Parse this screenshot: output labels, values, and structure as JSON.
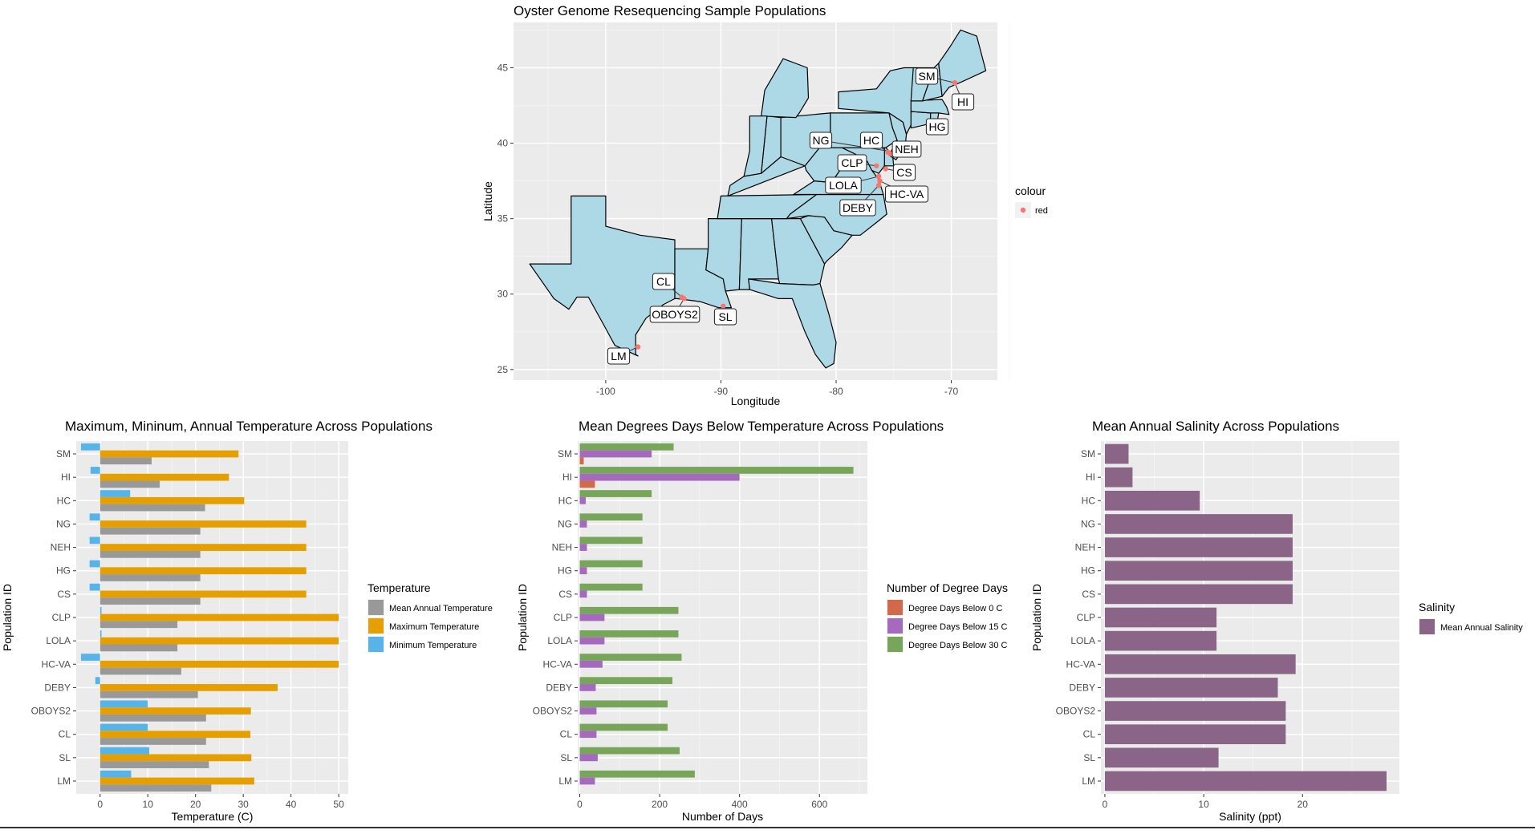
{
  "chart_data": [
    {
      "type": "map",
      "title": "Oyster Genome Resequencing Sample Populations",
      "xlabel": "Longitude",
      "ylabel": "Latitude",
      "xlim": [
        -108,
        -66
      ],
      "ylim": [
        24.3,
        48
      ],
      "x_ticks": [
        -100,
        -90,
        -80,
        -70
      ],
      "y_ticks": [
        25,
        30,
        35,
        40,
        45
      ],
      "grid": true,
      "fill_color": "#add8e6",
      "point_color": "#f8766d",
      "legend": {
        "title": "colour",
        "entries": [
          "red"
        ],
        "position": "right"
      },
      "points": [
        {
          "label": "SM",
          "lon": -69.7,
          "lat": 44.0
        },
        {
          "label": "HI",
          "lon": -69.7,
          "lat": 44.0
        },
        {
          "label": "HG",
          "lon": -71.5,
          "lat": 41.5
        },
        {
          "label": "NG",
          "lon": -74.8,
          "lat": 39.4
        },
        {
          "label": "HC",
          "lon": -75.5,
          "lat": 39.4
        },
        {
          "label": "NEH",
          "lon": -75.3,
          "lat": 39.3
        },
        {
          "label": "CLP",
          "lon": -76.5,
          "lat": 38.5
        },
        {
          "label": "CS",
          "lon": -75.7,
          "lat": 38.3
        },
        {
          "label": "LOLA",
          "lon": -76.3,
          "lat": 37.8
        },
        {
          "label": "HC-VA",
          "lon": -76.2,
          "lat": 37.5
        },
        {
          "label": "DEBY",
          "lon": -76.3,
          "lat": 37.2
        },
        {
          "label": "CL",
          "lon": -93.4,
          "lat": 29.8
        },
        {
          "label": "OBOYS2",
          "lon": -93.2,
          "lat": 29.7
        },
        {
          "label": "SL",
          "lon": -89.8,
          "lat": 29.2
        },
        {
          "label": "LM",
          "lon": -97.2,
          "lat": 26.5
        }
      ]
    },
    {
      "type": "bar",
      "orientation": "horizontal",
      "title": "Maximum, Mininum, Annual Temperature Across Populations",
      "xlabel": "Temperature (C)",
      "ylabel": "Population ID",
      "xlim": [
        -5,
        52
      ],
      "x_ticks": [
        0,
        10,
        20,
        30,
        40,
        50
      ],
      "grid": true,
      "categories": [
        "SM",
        "HI",
        "HC",
        "NG",
        "NEH",
        "HG",
        "CS",
        "CLP",
        "LOLA",
        "HC-VA",
        "DEBY",
        "OBOYS2",
        "CL",
        "SL",
        "LM"
      ],
      "legend": {
        "title": "Temperature",
        "position": "right"
      },
      "series": [
        {
          "name": "Minimum Temperature",
          "color": "#56b4e9",
          "values": [
            -4,
            -2,
            6.3,
            -2.2,
            -2.2,
            -2.2,
            -2.2,
            0.3,
            0.3,
            -4,
            -1,
            10,
            10,
            10.3,
            6.5
          ]
        },
        {
          "name": "Maximum Temperature",
          "color": "#e69f00",
          "values": [
            29,
            27,
            30.2,
            43.2,
            43.2,
            43.2,
            43.2,
            50,
            50,
            50,
            37.2,
            31.6,
            31.5,
            31.7,
            32.3
          ]
        },
        {
          "name": "Mean Annual Temperature",
          "color": "#999999",
          "values": [
            10.8,
            12.5,
            22,
            21,
            21,
            21,
            21,
            16.2,
            16.2,
            17,
            20.5,
            22.2,
            22.2,
            22.8,
            23.3
          ]
        }
      ]
    },
    {
      "type": "bar",
      "orientation": "horizontal",
      "title": "Mean Degrees Days Below Temperature Across Populations",
      "xlabel": "Number of Days",
      "ylabel": "Population ID",
      "xlim": [
        -5,
        720
      ],
      "x_ticks": [
        0,
        200,
        400,
        600
      ],
      "grid": true,
      "categories": [
        "SM",
        "HI",
        "HC",
        "NG",
        "NEH",
        "HG",
        "CS",
        "CLP",
        "LOLA",
        "HC-VA",
        "DEBY",
        "OBOYS2",
        "CL",
        "SL",
        "LM"
      ],
      "legend": {
        "title": "Number of Degree Days",
        "position": "right"
      },
      "series": [
        {
          "name": "Degree Days Below 30 C",
          "color": "#77a65a",
          "values": [
            235,
            685,
            180,
            157,
            157,
            157,
            157,
            247,
            247,
            255,
            232,
            220,
            220,
            250,
            288
          ]
        },
        {
          "name": "Degree Days Below 15 C",
          "color": "#a569bd",
          "values": [
            180,
            400,
            15,
            18,
            18,
            18,
            18,
            62,
            62,
            57,
            40,
            42,
            42,
            45,
            38
          ]
        },
        {
          "name": "Degree Days Below 0 C",
          "color": "#d2694a",
          "values": [
            10,
            38,
            0,
            0,
            0,
            0,
            0,
            0,
            0,
            0,
            0,
            0,
            0,
            0,
            0
          ]
        }
      ]
    },
    {
      "type": "bar",
      "orientation": "horizontal",
      "title": "Mean Annual Salinity Across Populations",
      "xlabel": "Salinity (ppt)",
      "ylabel": "Population ID",
      "xlim": [
        -0.4,
        29.8
      ],
      "x_ticks": [
        0,
        10,
        20
      ],
      "grid": true,
      "categories": [
        "SM",
        "HI",
        "HC",
        "NG",
        "NEH",
        "HG",
        "CS",
        "CLP",
        "LOLA",
        "HC-VA",
        "DEBY",
        "OBOYS2",
        "CL",
        "SL",
        "LM"
      ],
      "legend": {
        "title": "Salinity",
        "position": "right"
      },
      "series": [
        {
          "name": "Mean Annual Salinity",
          "color": "#8b6588",
          "values": [
            2.4,
            2.8,
            9.6,
            19,
            19,
            19,
            19,
            11.3,
            11.3,
            19.3,
            17.5,
            18.3,
            18.3,
            11.5,
            28.5
          ]
        }
      ]
    }
  ]
}
